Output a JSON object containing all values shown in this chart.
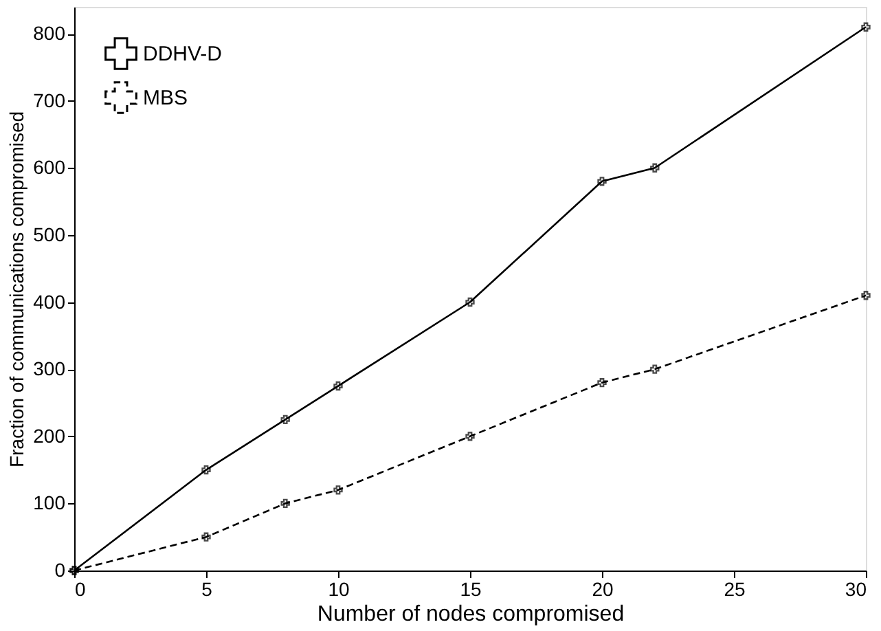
{
  "chart_data": {
    "type": "line",
    "xlabel": "Number of nodes compromised",
    "ylabel": "Fraction of communications compromised",
    "x": [
      0,
      5,
      8,
      10,
      15,
      20,
      22,
      30
    ],
    "series": [
      {
        "name": "DDHV-D",
        "color": "#000000",
        "line_style": "solid",
        "marker": "cross",
        "values": [
          0,
          150,
          225,
          275,
          400,
          580,
          600,
          810
        ]
      },
      {
        "name": "MBS",
        "color": "#000000",
        "line_style": "dashed",
        "marker": "cross",
        "values": [
          0,
          50,
          100,
          120,
          200,
          280,
          300,
          410
        ]
      }
    ],
    "xlim": [
      0,
      30
    ],
    "xticks": [
      0,
      5,
      10,
      15,
      20,
      25,
      30
    ],
    "ylim": [
      0,
      840
    ],
    "yticks": [
      0,
      100,
      200,
      300,
      400,
      500,
      600,
      700,
      800
    ],
    "grid": false,
    "legend": "top left"
  }
}
